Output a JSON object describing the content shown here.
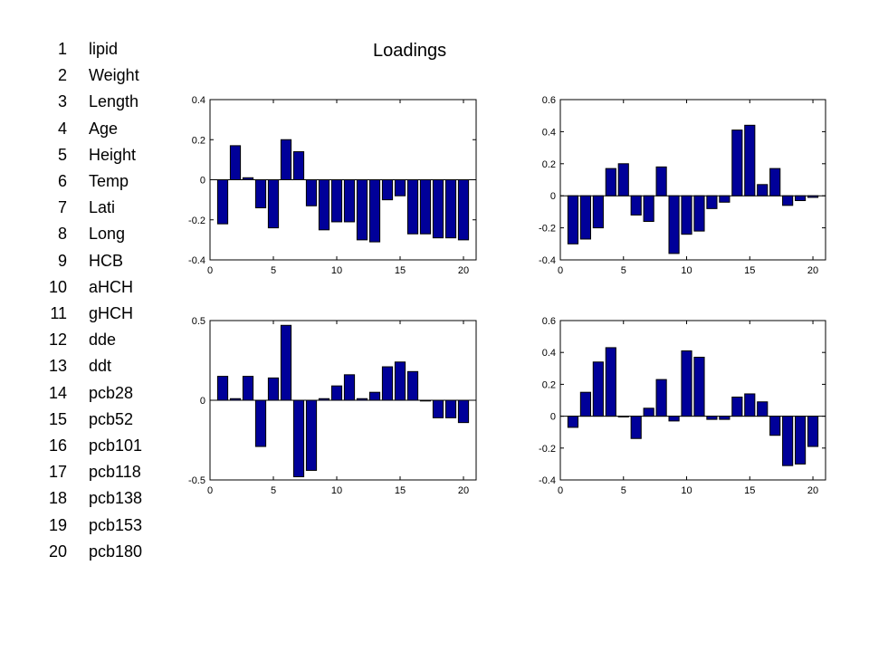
{
  "title": "Loadings",
  "variables": [
    {
      "num": "1",
      "name": "lipid"
    },
    {
      "num": "2",
      "name": "Weight"
    },
    {
      "num": "3",
      "name": "Length"
    },
    {
      "num": "4",
      "name": "Age"
    },
    {
      "num": "5",
      "name": "Height"
    },
    {
      "num": "6",
      "name": "Temp"
    },
    {
      "num": "7",
      "name": "Lati"
    },
    {
      "num": "8",
      "name": "Long"
    },
    {
      "num": "9",
      "name": "HCB"
    },
    {
      "num": "10",
      "name": "aHCH"
    },
    {
      "num": "11",
      "name": "gHCH"
    },
    {
      "num": "12",
      "name": "dde"
    },
    {
      "num": "13",
      "name": "ddt"
    },
    {
      "num": "14",
      "name": "pcb28"
    },
    {
      "num": "15",
      "name": "pcb52"
    },
    {
      "num": "16",
      "name": "pcb101"
    },
    {
      "num": "17",
      "name": "pcb118"
    },
    {
      "num": "18",
      "name": "pcb138"
    },
    {
      "num": "19",
      "name": "pcb153"
    },
    {
      "num": "20",
      "name": "pcb180"
    }
  ],
  "colors": {
    "bar_fill": "#000099",
    "bar_stroke": "#000000"
  },
  "chart_data": [
    {
      "type": "bar",
      "x": [
        1,
        2,
        3,
        4,
        5,
        6,
        7,
        8,
        9,
        10,
        11,
        12,
        13,
        14,
        15,
        16,
        17,
        18,
        19,
        20
      ],
      "values": [
        -0.22,
        0.17,
        0.01,
        -0.14,
        -0.24,
        0.2,
        0.14,
        -0.13,
        -0.25,
        -0.21,
        -0.21,
        -0.3,
        -0.31,
        -0.1,
        -0.08,
        -0.27,
        -0.27,
        -0.29,
        -0.29,
        -0.3
      ],
      "xlim": [
        0,
        21
      ],
      "ylim": [
        -0.4,
        0.4
      ],
      "xticks": [
        0,
        5,
        10,
        15,
        20
      ],
      "yticks": [
        -0.4,
        -0.2,
        0,
        0.2,
        0.4
      ],
      "ytick_labels": [
        "-0.4",
        "-0.2",
        "0",
        "0.2",
        "0.4"
      ]
    },
    {
      "type": "bar",
      "x": [
        1,
        2,
        3,
        4,
        5,
        6,
        7,
        8,
        9,
        10,
        11,
        12,
        13,
        14,
        15,
        16,
        17,
        18,
        19,
        20
      ],
      "values": [
        -0.3,
        -0.27,
        -0.2,
        0.17,
        0.2,
        -0.12,
        -0.16,
        0.18,
        -0.36,
        -0.24,
        -0.22,
        -0.08,
        -0.04,
        0.41,
        0.44,
        0.07,
        0.17,
        -0.06,
        -0.03,
        -0.01
      ],
      "xlim": [
        0,
        21
      ],
      "ylim": [
        -0.4,
        0.6
      ],
      "xticks": [
        0,
        5,
        10,
        15,
        20
      ],
      "yticks": [
        -0.4,
        -0.2,
        0,
        0.2,
        0.4,
        0.6
      ],
      "ytick_labels": [
        "-0.4",
        "-0.2",
        "0",
        "0.2",
        "0.4",
        "0.6"
      ]
    },
    {
      "type": "bar",
      "x": [
        1,
        2,
        3,
        4,
        5,
        6,
        7,
        8,
        9,
        10,
        11,
        12,
        13,
        14,
        15,
        16,
        17,
        18,
        19,
        20
      ],
      "values": [
        0.15,
        0.01,
        0.15,
        -0.29,
        0.14,
        0.47,
        -0.48,
        -0.44,
        0.01,
        0.09,
        0.16,
        0.01,
        0.05,
        0.21,
        0.24,
        0.18,
        0.0,
        -0.11,
        -0.11,
        -0.14
      ],
      "xlim": [
        0,
        21
      ],
      "ylim": [
        -0.5,
        0.5
      ],
      "xticks": [
        0,
        5,
        10,
        15,
        20
      ],
      "yticks": [
        -0.5,
        0,
        0.5
      ],
      "ytick_labels": [
        "-0.5",
        "0",
        "0.5"
      ]
    },
    {
      "type": "bar",
      "x": [
        1,
        2,
        3,
        4,
        5,
        6,
        7,
        8,
        9,
        10,
        11,
        12,
        13,
        14,
        15,
        16,
        17,
        18,
        19,
        20
      ],
      "values": [
        -0.07,
        0.15,
        0.34,
        0.43,
        0.0,
        -0.14,
        0.05,
        0.23,
        -0.03,
        0.41,
        0.37,
        -0.02,
        -0.02,
        0.12,
        0.14,
        0.09,
        -0.12,
        -0.31,
        -0.3,
        -0.19
      ],
      "xlim": [
        0,
        21
      ],
      "ylim": [
        -0.4,
        0.6
      ],
      "xticks": [
        0,
        5,
        10,
        15,
        20
      ],
      "yticks": [
        -0.4,
        -0.2,
        0,
        0.2,
        0.4,
        0.6
      ],
      "ytick_labels": [
        "-0.4",
        "-0.2",
        "0",
        "0.2",
        "0.4",
        "0.6"
      ]
    }
  ]
}
